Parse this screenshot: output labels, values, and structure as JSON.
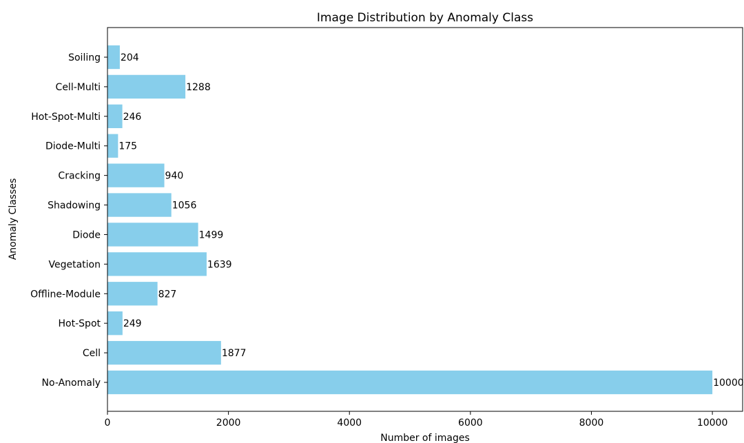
{
  "chart_data": {
    "type": "bar",
    "orientation": "horizontal",
    "title": "Image Distribution by Anomaly Class",
    "xlabel": "Number of images",
    "ylabel": "Anomaly Classes",
    "categories": [
      "No-Anomaly",
      "Cell",
      "Hot-Spot",
      "Offline-Module",
      "Vegetation",
      "Diode",
      "Shadowing",
      "Cracking",
      "Diode-Multi",
      "Hot-Spot-Multi",
      "Cell-Multi",
      "Soiling"
    ],
    "values": [
      10000,
      1877,
      249,
      827,
      1639,
      1499,
      1056,
      940,
      175,
      246,
      1288,
      204
    ],
    "xlim": [
      0,
      10500
    ],
    "xticks": [
      0,
      2000,
      4000,
      6000,
      8000,
      10000
    ],
    "bar_color": "#87ceeb",
    "grid": false,
    "legend": false,
    "data_labels": true
  }
}
